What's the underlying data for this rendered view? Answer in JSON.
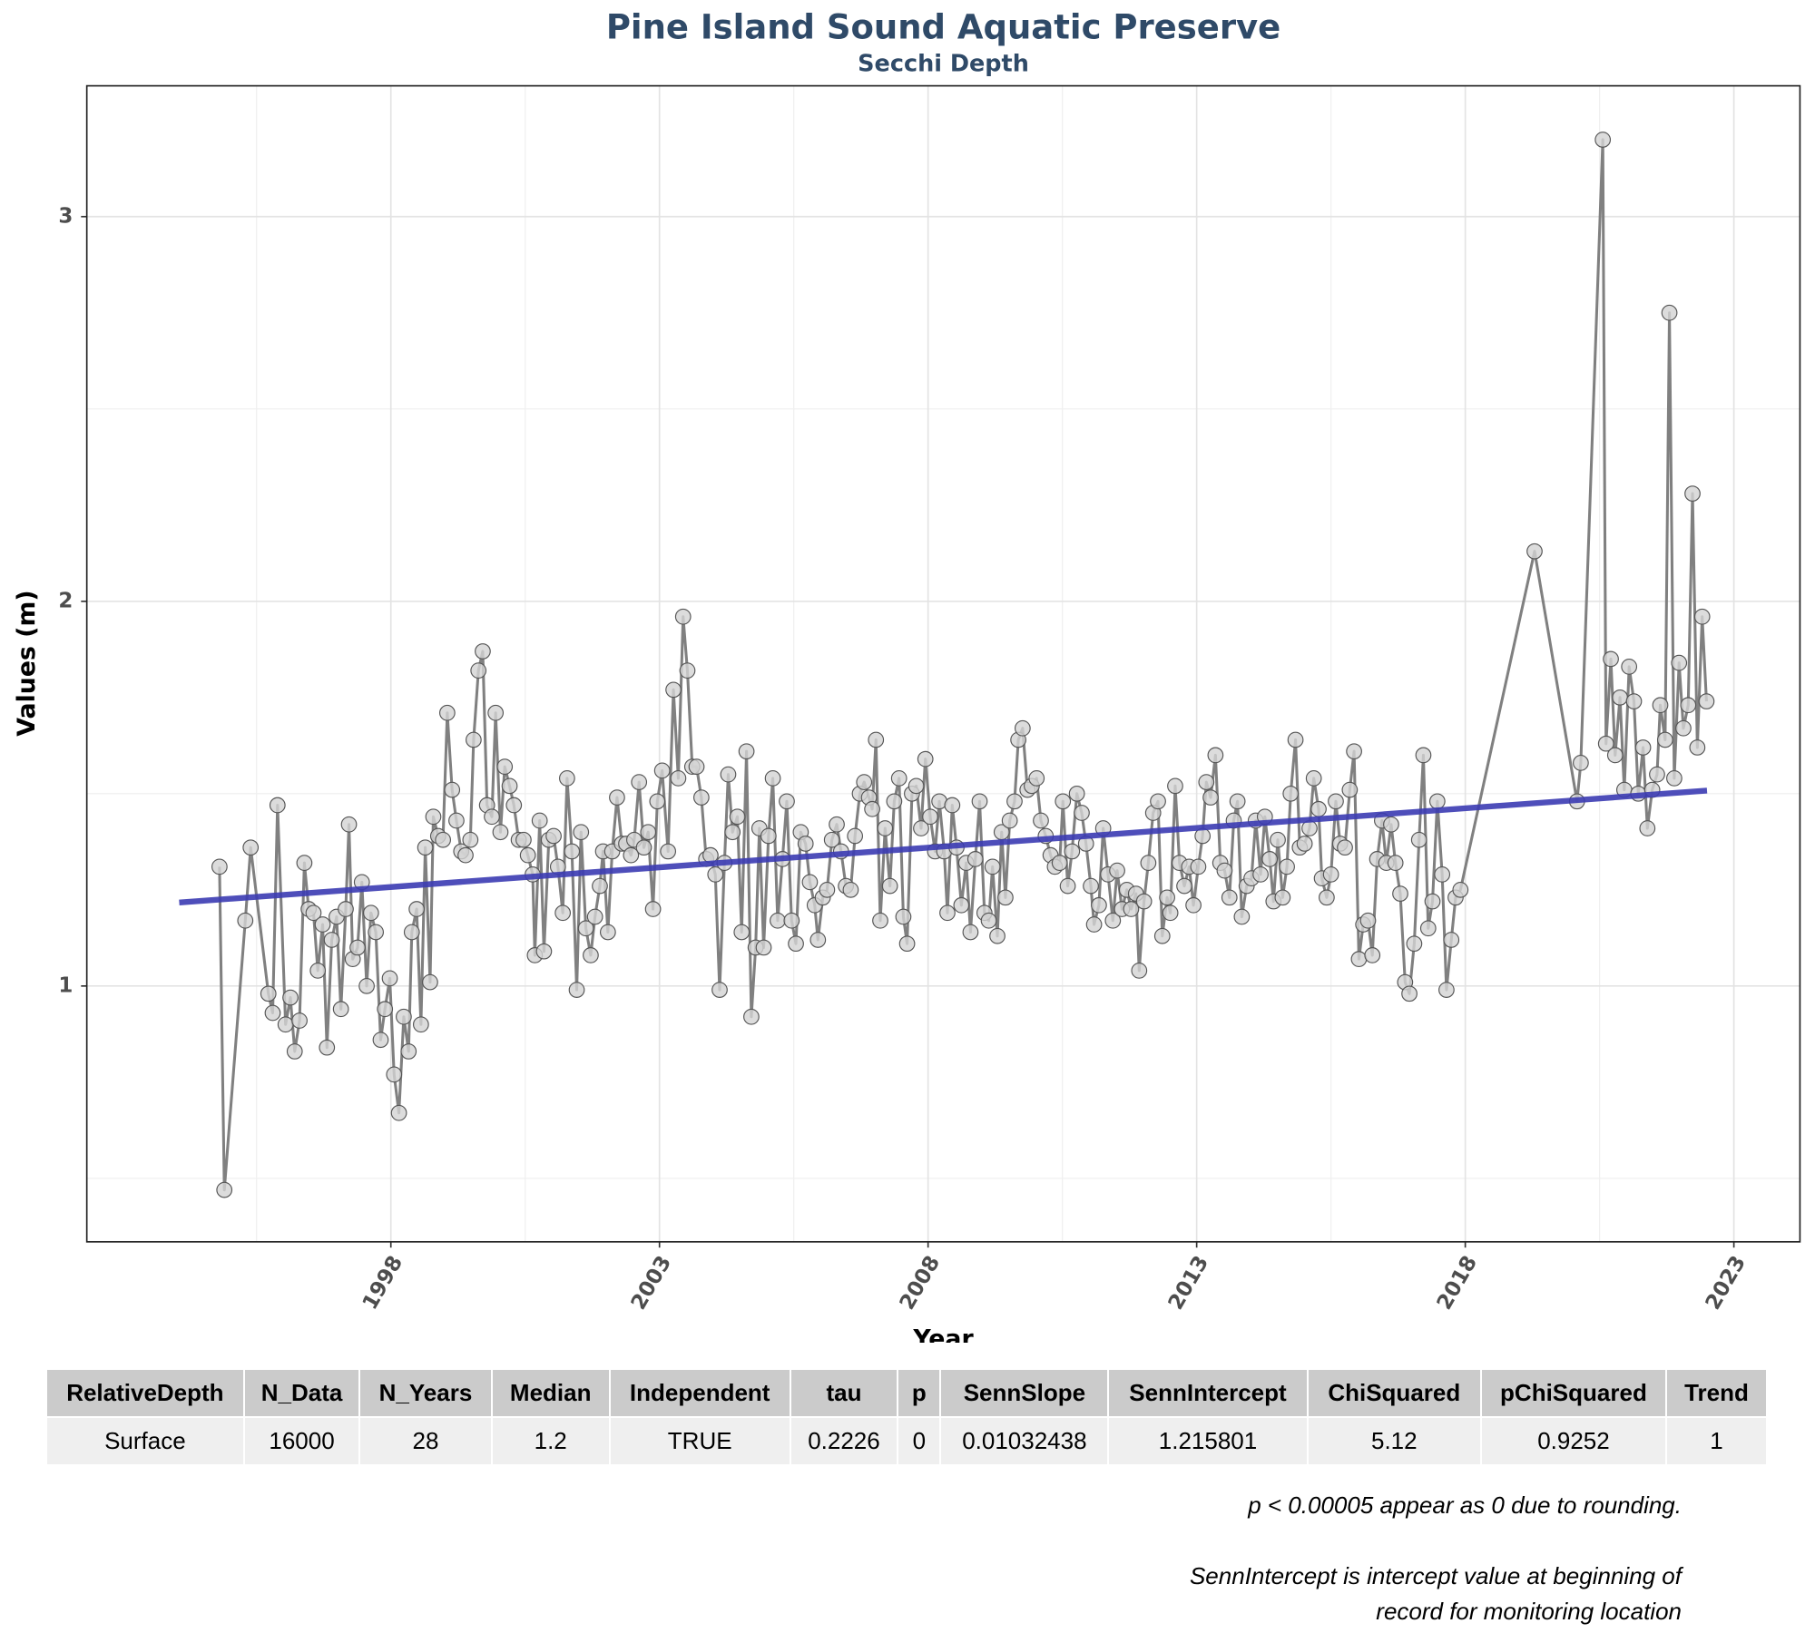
{
  "chart_data": {
    "type": "line",
    "title": "Pine Island Sound Aquatic Preserve",
    "subtitle": "Secchi Depth",
    "x_label": "Year",
    "y_label": "Values (m)",
    "xlim": [
      1992.34,
      2024.23
    ],
    "ylim": [
      0.335,
      3.34
    ],
    "xticks": [
      1998,
      2003,
      2008,
      2013,
      2018,
      2023
    ],
    "yticks": [
      1,
      2,
      3
    ],
    "x_minor_ticks": [
      1995.5,
      2000.5,
      2005.5,
      2010.5,
      2015.5,
      2020.5
    ],
    "y_minor_ticks": [
      0.5,
      1.5,
      2.5
    ],
    "grid": true,
    "series": [
      {
        "color": "#808080",
        "marker_fill": "#d3d3d3",
        "x": [
          1994.81,
          1994.9,
          1995.29,
          1995.39,
          1995.72,
          1995.8,
          1995.89,
          1996.04,
          1996.13,
          1996.21,
          1996.3,
          1996.39,
          1996.47,
          1996.56,
          1996.64,
          1996.73,
          1996.81,
          1996.9,
          1996.99,
          1997.07,
          1997.16,
          1997.22,
          1997.29,
          1997.38,
          1997.46,
          1997.55,
          1997.63,
          1997.72,
          1997.81,
          1997.89,
          1997.98,
          1998.06,
          1998.15,
          1998.24,
          1998.33,
          1998.39,
          1998.48,
          1998.56,
          1998.64,
          1998.73,
          1998.79,
          1998.88,
          1998.97,
          1999.05,
          1999.14,
          1999.22,
          1999.31,
          1999.39,
          1999.48,
          1999.54,
          1999.63,
          1999.71,
          1999.79,
          1999.88,
          1999.95,
          2000.04,
          2000.12,
          2000.21,
          2000.29,
          2000.38,
          2000.47,
          2000.55,
          2000.64,
          2000.68,
          2000.77,
          2000.85,
          2000.94,
          2001.03,
          2001.11,
          2001.2,
          2001.28,
          2001.37,
          2001.46,
          2001.54,
          2001.63,
          2001.72,
          2001.8,
          2001.89,
          2001.95,
          2002.04,
          2002.12,
          2002.21,
          2002.3,
          2002.38,
          2002.47,
          2002.53,
          2002.62,
          2002.71,
          2002.79,
          2002.88,
          2002.96,
          2003.05,
          2003.16,
          2003.26,
          2003.35,
          2003.44,
          2003.52,
          2003.61,
          2003.69,
          2003.78,
          2003.87,
          2003.95,
          2004.04,
          2004.12,
          2004.21,
          2004.28,
          2004.36,
          2004.45,
          2004.53,
          2004.62,
          2004.71,
          2004.79,
          2004.86,
          2004.94,
          2005.03,
          2005.11,
          2005.2,
          2005.29,
          2005.37,
          2005.46,
          2005.54,
          2005.63,
          2005.72,
          2005.8,
          2005.89,
          2005.95,
          2006.04,
          2006.12,
          2006.21,
          2006.3,
          2006.38,
          2006.47,
          2006.56,
          2006.64,
          2006.73,
          2006.81,
          2006.9,
          2006.96,
          2007.03,
          2007.11,
          2007.2,
          2007.29,
          2007.37,
          2007.46,
          2007.54,
          2007.61,
          2007.7,
          2007.78,
          2007.87,
          2007.95,
          2008.04,
          2008.13,
          2008.21,
          2008.3,
          2008.36,
          2008.45,
          2008.53,
          2008.62,
          2008.71,
          2008.79,
          2008.88,
          2008.96,
          2009.05,
          2009.13,
          2009.2,
          2009.29,
          2009.37,
          2009.44,
          2009.52,
          2009.61,
          2009.68,
          2009.76,
          2009.85,
          2009.93,
          2010.02,
          2010.1,
          2010.19,
          2010.28,
          2010.36,
          2010.45,
          2010.51,
          2010.6,
          2010.68,
          2010.77,
          2010.86,
          2010.94,
          2011.03,
          2011.09,
          2011.18,
          2011.26,
          2011.35,
          2011.44,
          2011.52,
          2011.61,
          2011.7,
          2011.78,
          2011.87,
          2011.93,
          2012.02,
          2012.1,
          2012.19,
          2012.28,
          2012.36,
          2012.45,
          2012.51,
          2012.6,
          2012.68,
          2012.77,
          2012.86,
          2012.94,
          2013.03,
          2013.11,
          2013.18,
          2013.26,
          2013.35,
          2013.44,
          2013.52,
          2013.61,
          2013.69,
          2013.76,
          2013.84,
          2013.93,
          2014.02,
          2014.1,
          2014.19,
          2014.27,
          2014.36,
          2014.43,
          2014.51,
          2014.6,
          2014.68,
          2014.75,
          2014.84,
          2014.92,
          2015.01,
          2015.1,
          2015.18,
          2015.27,
          2015.33,
          2015.42,
          2015.5,
          2015.59,
          2015.67,
          2015.76,
          2015.85,
          2015.93,
          2016.02,
          2016.1,
          2016.19,
          2016.27,
          2016.36,
          2016.45,
          2016.53,
          2016.62,
          2016.7,
          2016.79,
          2016.88,
          2016.96,
          2017.05,
          2017.14,
          2017.22,
          2017.31,
          2017.39,
          2017.48,
          2017.57,
          2017.65,
          2017.74,
          2017.82,
          2017.91,
          2019.29,
          2020.08,
          2020.15,
          2020.56,
          2020.62,
          2020.71,
          2020.79,
          2020.88,
          2020.96,
          2021.05,
          2021.14,
          2021.22,
          2021.31,
          2021.39,
          2021.48,
          2021.57,
          2021.63,
          2021.72,
          2021.8,
          2021.89,
          2021.98,
          2022.06,
          2022.15,
          2022.23,
          2022.32,
          2022.41,
          2022.49
        ],
        "values": [
          1.31,
          0.47,
          1.17,
          1.36,
          0.98,
          0.93,
          1.47,
          0.9,
          0.97,
          0.83,
          0.91,
          1.32,
          1.2,
          1.19,
          1.04,
          1.16,
          0.84,
          1.12,
          1.18,
          0.94,
          1.2,
          1.42,
          1.07,
          1.1,
          1.27,
          1.0,
          1.19,
          1.14,
          0.86,
          0.94,
          1.02,
          0.77,
          0.67,
          0.92,
          0.83,
          1.14,
          1.2,
          0.9,
          1.36,
          1.01,
          1.44,
          1.39,
          1.38,
          1.71,
          1.51,
          1.43,
          1.35,
          1.34,
          1.38,
          1.64,
          1.82,
          1.87,
          1.47,
          1.44,
          1.71,
          1.4,
          1.57,
          1.52,
          1.47,
          1.38,
          1.38,
          1.34,
          1.29,
          1.08,
          1.43,
          1.09,
          1.38,
          1.39,
          1.31,
          1.19,
          1.54,
          1.35,
          0.99,
          1.4,
          1.15,
          1.08,
          1.18,
          1.26,
          1.35,
          1.14,
          1.35,
          1.49,
          1.37,
          1.37,
          1.34,
          1.38,
          1.53,
          1.36,
          1.4,
          1.2,
          1.48,
          1.56,
          1.35,
          1.77,
          1.54,
          1.96,
          1.82,
          1.57,
          1.57,
          1.49,
          1.33,
          1.34,
          1.29,
          0.99,
          1.32,
          1.55,
          1.4,
          1.44,
          1.14,
          1.61,
          0.92,
          1.1,
          1.41,
          1.1,
          1.39,
          1.54,
          1.17,
          1.33,
          1.48,
          1.17,
          1.11,
          1.4,
          1.37,
          1.27,
          1.21,
          1.12,
          1.23,
          1.25,
          1.38,
          1.42,
          1.35,
          1.26,
          1.25,
          1.39,
          1.5,
          1.53,
          1.49,
          1.46,
          1.64,
          1.17,
          1.41,
          1.26,
          1.48,
          1.54,
          1.18,
          1.11,
          1.5,
          1.52,
          1.41,
          1.59,
          1.44,
          1.35,
          1.48,
          1.35,
          1.19,
          1.47,
          1.36,
          1.21,
          1.32,
          1.14,
          1.33,
          1.48,
          1.19,
          1.17,
          1.31,
          1.13,
          1.4,
          1.23,
          1.43,
          1.48,
          1.64,
          1.67,
          1.51,
          1.52,
          1.54,
          1.43,
          1.39,
          1.34,
          1.31,
          1.32,
          1.48,
          1.26,
          1.35,
          1.5,
          1.45,
          1.37,
          1.26,
          1.16,
          1.21,
          1.41,
          1.29,
          1.17,
          1.3,
          1.2,
          1.25,
          1.2,
          1.24,
          1.04,
          1.22,
          1.32,
          1.45,
          1.48,
          1.13,
          1.23,
          1.19,
          1.52,
          1.32,
          1.26,
          1.31,
          1.21,
          1.31,
          1.39,
          1.53,
          1.49,
          1.6,
          1.32,
          1.3,
          1.23,
          1.43,
          1.48,
          1.18,
          1.26,
          1.28,
          1.43,
          1.29,
          1.44,
          1.33,
          1.22,
          1.38,
          1.23,
          1.31,
          1.5,
          1.64,
          1.36,
          1.37,
          1.41,
          1.54,
          1.46,
          1.28,
          1.23,
          1.29,
          1.48,
          1.37,
          1.36,
          1.51,
          1.61,
          1.07,
          1.16,
          1.17,
          1.08,
          1.33,
          1.43,
          1.32,
          1.42,
          1.32,
          1.24,
          1.01,
          0.98,
          1.11,
          1.38,
          1.6,
          1.15,
          1.22,
          1.48,
          1.29,
          0.99,
          1.12,
          1.23,
          1.25,
          2.13,
          1.48,
          1.58,
          3.2,
          1.63,
          1.85,
          1.6,
          1.75,
          1.51,
          1.83,
          1.74,
          1.5,
          1.62,
          1.41,
          1.51,
          1.55,
          1.73,
          1.64,
          2.75,
          1.54,
          1.84,
          1.67,
          1.73,
          2.28,
          1.62,
          1.96,
          1.74
        ]
      }
    ],
    "trend_line": {
      "color": "#3b3bb3",
      "x": [
        1994.06,
        2022.5
      ],
      "values": [
        1.217,
        1.508
      ]
    }
  },
  "table": {
    "header": [
      "RelativeDepth",
      "N_Data",
      "N_Years",
      "Median",
      "Independent",
      "tau",
      "p",
      "SennSlope",
      "SennIntercept",
      "ChiSquared",
      "pChiSquared",
      "Trend"
    ],
    "rows": [
      [
        "Surface",
        "16000",
        "28",
        "1.2",
        "TRUE",
        "0.2226",
        "0",
        "0.01032438",
        "1.215801",
        "5.12",
        "0.9252",
        "1"
      ]
    ]
  },
  "notes": [
    "p < 0.00005 appear as 0 due to rounding.",
    "SennIntercept is intercept value at beginning of record for monitoring location"
  ]
}
